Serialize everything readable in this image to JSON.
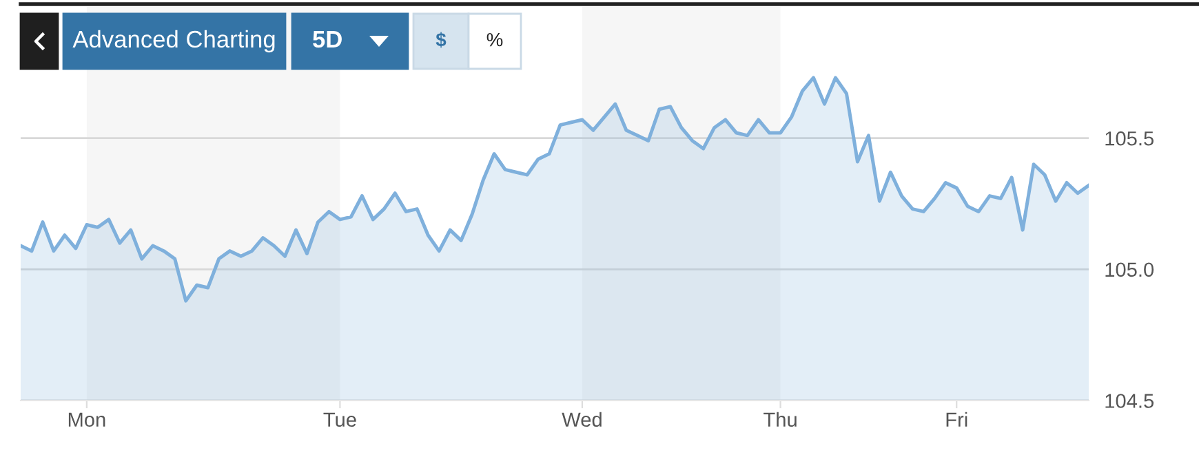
{
  "chart_data": {
    "type": "area",
    "annotations": [
      "Advanced Charting",
      "5D",
      "$",
      "%"
    ],
    "categories": [
      null,
      null,
      null,
      null,
      null,
      null,
      "Mon",
      null,
      null,
      null,
      null,
      null,
      null,
      null,
      null,
      null,
      null,
      null,
      null,
      null,
      null,
      null,
      null,
      null,
      null,
      null,
      null,
      null,
      null,
      "Tue",
      null,
      null,
      null,
      null,
      null,
      null,
      null,
      null,
      null,
      null,
      null,
      null,
      null,
      null,
      null,
      null,
      null,
      null,
      null,
      null,
      null,
      "Wed",
      null,
      null,
      null,
      null,
      null,
      null,
      null,
      null,
      null,
      null,
      null,
      null,
      null,
      null,
      null,
      null,
      null,
      "Thu",
      null,
      null,
      null,
      null,
      null,
      null,
      null,
      null,
      null,
      null,
      null,
      null,
      null,
      null,
      null,
      "Fri",
      null,
      null,
      null,
      null,
      null,
      null,
      null,
      null,
      null,
      null,
      null,
      null
    ],
    "series": [
      {
        "color": "#7fb0dc",
        "values": [
          105.09,
          105.07,
          105.18,
          105.07,
          105.13,
          105.08,
          105.17,
          105.16,
          105.19,
          105.1,
          105.15,
          105.04,
          105.09,
          105.07,
          105.04,
          104.88,
          104.94,
          104.93,
          105.04,
          105.07,
          105.05,
          105.07,
          105.12,
          105.09,
          105.05,
          105.15,
          105.06,
          105.18,
          105.22,
          105.19,
          105.2,
          105.28,
          105.19,
          105.23,
          105.29,
          105.22,
          105.23,
          105.13,
          105.07,
          105.15,
          105.11,
          105.21,
          105.34,
          105.44,
          105.38,
          105.37,
          105.36,
          105.42,
          105.44,
          105.55,
          105.56,
          105.57,
          105.53,
          105.58,
          105.63,
          105.53,
          105.51,
          105.49,
          105.61,
          105.62,
          105.54,
          105.49,
          105.46,
          105.54,
          105.57,
          105.52,
          105.51,
          105.57,
          105.52,
          105.52,
          105.58,
          105.68,
          105.73,
          105.63,
          105.73,
          105.67,
          105.41,
          105.51,
          105.26,
          105.37,
          105.28,
          105.23,
          105.22,
          105.27,
          105.33,
          105.31,
          105.24,
          105.22,
          105.28,
          105.27,
          105.35,
          105.15,
          105.4,
          105.36,
          105.26,
          105.33,
          105.29,
          105.32
        ]
      }
    ],
    "ylim": [
      104.5,
      106.0
    ],
    "yticks": [
      {
        "value": 104.5,
        "label": "104.5"
      },
      {
        "value": 105.0,
        "label": "105.0"
      },
      {
        "value": 105.5,
        "label": "105.5"
      }
    ],
    "bands": [
      {
        "axis": "x",
        "from": "Mon",
        "to": "Tue",
        "color": "#f6f6f6"
      },
      {
        "axis": "x",
        "from": "Wed",
        "to": "Thu",
        "color": "#f6f6f6"
      }
    ],
    "grid": "y",
    "legend": false
  }
}
